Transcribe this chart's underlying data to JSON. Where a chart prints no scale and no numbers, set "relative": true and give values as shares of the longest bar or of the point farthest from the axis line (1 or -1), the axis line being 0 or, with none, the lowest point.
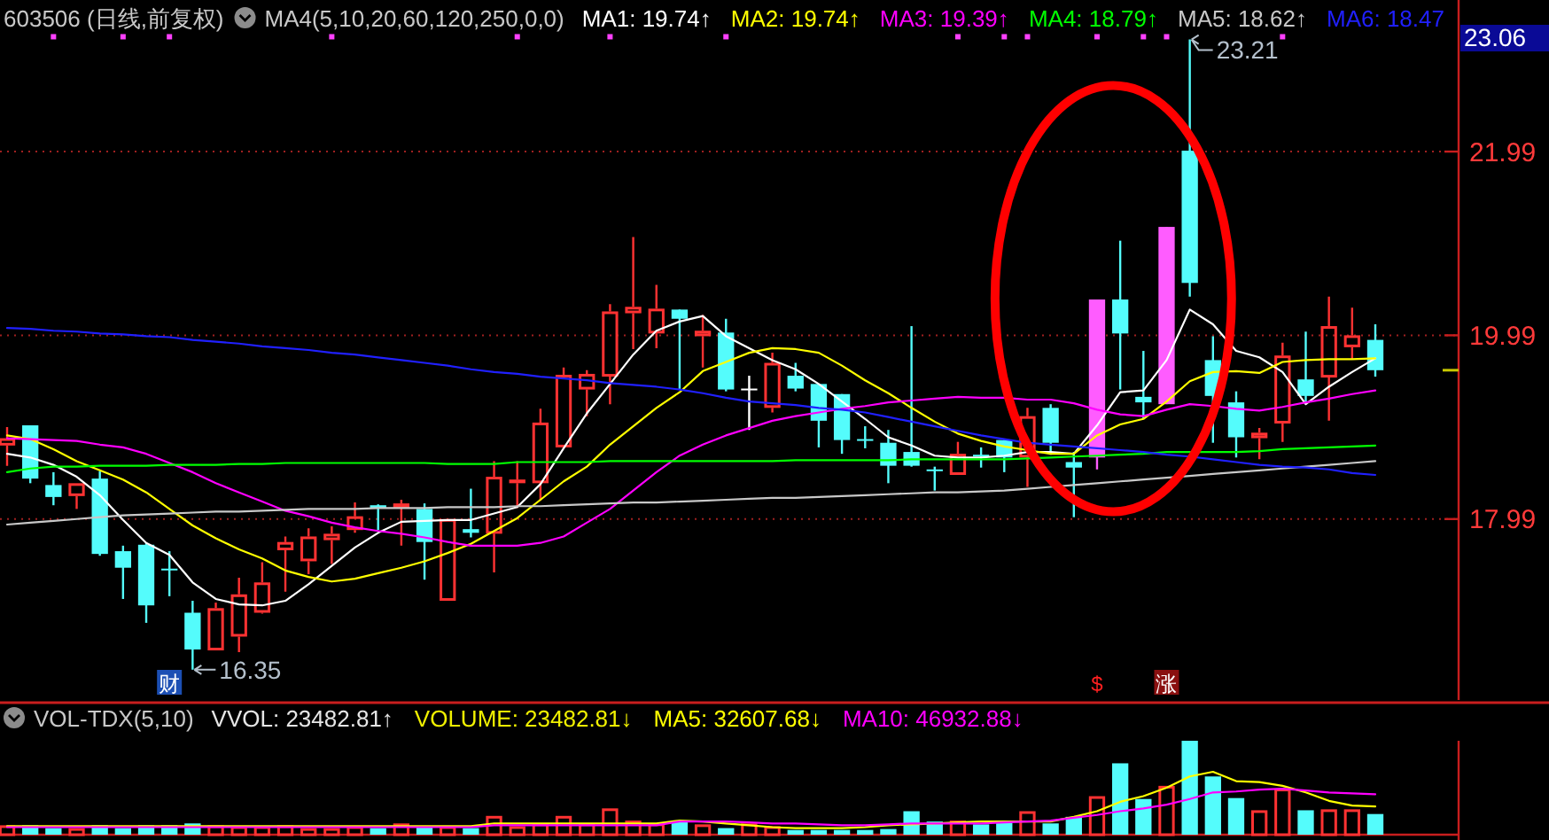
{
  "chart_data": [
    {
      "type": "candlestick",
      "title": "603506 (日线,前复权)",
      "subtitle": "MA4(5,10,20,60,120,250,0,0)",
      "categories": [
        null,
        null,
        null,
        null,
        null,
        null,
        null,
        null,
        null,
        null,
        null,
        null,
        null,
        null,
        null,
        null,
        null,
        null,
        null,
        null,
        null,
        null,
        null,
        null,
        null,
        null,
        null,
        null,
        null,
        null,
        null,
        null,
        null,
        null,
        null,
        null,
        null,
        null,
        null,
        null,
        null,
        null,
        null,
        null,
        null,
        null,
        null,
        null,
        null,
        null,
        null,
        null,
        null,
        null,
        null,
        null,
        null,
        null,
        null,
        null
      ],
      "ohlc": [
        [
          18.79,
          18.99,
          18.57,
          18.87
        ],
        [
          19.01,
          19.01,
          18.38,
          18.43
        ],
        [
          18.36,
          18.5,
          18.14,
          18.23
        ],
        [
          18.24,
          18.38,
          18.1,
          18.38
        ],
        [
          18.43,
          18.51,
          17.59,
          17.61
        ],
        [
          17.64,
          17.7,
          17.12,
          17.46
        ],
        [
          17.71,
          17.73,
          16.86,
          17.05
        ],
        [
          17.45,
          17.64,
          17.15,
          17.44
        ],
        [
          16.97,
          17.1,
          16.35,
          16.57
        ],
        [
          16.56,
          17.08,
          16.56,
          17.02
        ],
        [
          16.71,
          17.35,
          16.54,
          17.17
        ],
        [
          16.97,
          17.52,
          16.96,
          17.3
        ],
        [
          17.65,
          17.8,
          17.2,
          17.74
        ],
        [
          17.53,
          17.89,
          17.39,
          17.8
        ],
        [
          17.76,
          17.91,
          17.5,
          17.83
        ],
        [
          17.87,
          18.17,
          17.84,
          18.02
        ],
        [
          18.14,
          18.15,
          17.87,
          18.11
        ],
        [
          18.11,
          18.2,
          17.7,
          18.16
        ],
        [
          18.1,
          18.16,
          17.33,
          17.74
        ],
        [
          17.1,
          17.99,
          17.1,
          17.99
        ],
        [
          17.88,
          18.32,
          17.79,
          17.84
        ],
        [
          17.83,
          18.62,
          17.41,
          18.45
        ],
        [
          18.38,
          18.62,
          18.11,
          18.42
        ],
        [
          18.38,
          19.19,
          18.19,
          19.04
        ],
        [
          18.77,
          19.64,
          18.76,
          19.56
        ],
        [
          19.4,
          19.61,
          19.11,
          19.57
        ],
        [
          19.54,
          20.33,
          19.24,
          20.25
        ],
        [
          20.23,
          21.06,
          19.84,
          20.3
        ],
        [
          20.01,
          20.54,
          19.85,
          20.28
        ],
        [
          20.27,
          20.27,
          19.4,
          20.17
        ],
        [
          19.98,
          20.21,
          19.64,
          20.04
        ],
        [
          20.02,
          20.17,
          19.38,
          19.4
        ],
        [
          19.41,
          19.55,
          18.96,
          19.41
        ],
        [
          19.2,
          19.8,
          19.15,
          19.69
        ],
        [
          19.55,
          19.69,
          19.38,
          19.41
        ],
        [
          19.46,
          19.46,
          18.77,
          19.06
        ],
        [
          19.35,
          19.35,
          18.7,
          18.85
        ],
        [
          18.86,
          19.0,
          18.76,
          18.85
        ],
        [
          18.82,
          18.96,
          18.38,
          18.57
        ],
        [
          18.72,
          20.09,
          18.56,
          18.57
        ],
        [
          18.53,
          18.56,
          18.3,
          18.52
        ],
        [
          18.47,
          18.83,
          18.47,
          18.7
        ],
        [
          18.69,
          18.77,
          18.55,
          18.68
        ],
        [
          18.85,
          18.85,
          18.5,
          18.66
        ],
        [
          18.66,
          19.2,
          18.34,
          19.11
        ],
        [
          19.2,
          19.24,
          18.69,
          18.82
        ],
        [
          18.61,
          18.72,
          18.01,
          18.55
        ],
        [
          18.66,
          20.38,
          18.53,
          20.38
        ],
        [
          20.38,
          21.02,
          19.4,
          20.01
        ],
        [
          19.32,
          19.82,
          19.08,
          19.26
        ],
        [
          19.24,
          21.17,
          19.24,
          21.17
        ],
        [
          22.0,
          23.21,
          20.41,
          20.56
        ],
        [
          19.72,
          19.98,
          18.82,
          19.33
        ],
        [
          19.26,
          19.38,
          18.66,
          18.88
        ],
        [
          18.87,
          18.98,
          18.64,
          18.93
        ],
        [
          19.03,
          19.91,
          18.83,
          19.77
        ],
        [
          19.51,
          20.03,
          19.24,
          19.33
        ],
        [
          19.53,
          20.41,
          19.06,
          20.09
        ],
        [
          19.86,
          20.29,
          19.73,
          19.99
        ],
        [
          19.94,
          20.11,
          19.54,
          19.61
        ]
      ],
      "colors": [
        "#ff3232",
        "#54fcfc",
        "#54fcfc",
        "#ff3232",
        "#54fcfc",
        "#54fcfc",
        "#54fcfc",
        "#54fcfc",
        "#54fcfc",
        "#ff3232",
        "#ff3232",
        "#ff3232",
        "#ff3232",
        "#ff3232",
        "#ff3232",
        "#ff3232",
        "#54fcfc",
        "#ff3232",
        "#54fcfc",
        "#ff3232",
        "#54fcfc",
        "#ff3232",
        "#ff3232",
        "#ff3232",
        "#ff3232",
        "#ff3232",
        "#ff3232",
        "#ff3232",
        "#ff3232",
        "#54fcfc",
        "#ff3232",
        "#54fcfc",
        "#ffffff",
        "#ff3232",
        "#54fcfc",
        "#54fcfc",
        "#54fcfc",
        "#54fcfc",
        "#54fcfc",
        "#54fcfc",
        "#54fcfc",
        "#ff3232",
        "#54fcfc",
        "#54fcfc",
        "#ff3232",
        "#54fcfc",
        "#54fcfc",
        "#ff5cff",
        "#54fcfc",
        "#54fcfc",
        "#ff5cff",
        "#54fcfc",
        "#54fcfc",
        "#54fcfc",
        "#ff3232",
        "#ff3232",
        "#54fcfc",
        "#ff3232",
        "#ff3232",
        "#54fcfc"
      ],
      "series": [
        {
          "name": "MA1: 19.74↑",
          "type": "line",
          "color": "#ffffff",
          "values": [
            18.7,
            18.66,
            18.58,
            18.45,
            18.25,
            17.98,
            17.73,
            17.6,
            17.3,
            17.12,
            17.06,
            17.05,
            17.1,
            17.28,
            17.48,
            17.68,
            17.84,
            17.96,
            17.97,
            17.98,
            17.98,
            18.05,
            18.12,
            18.37,
            18.76,
            19.14,
            19.46,
            19.78,
            20.04,
            20.14,
            20.2,
            19.98,
            19.85,
            19.72,
            19.62,
            19.46,
            19.27,
            19.08,
            18.88,
            18.79,
            18.68,
            18.66,
            18.66,
            18.68,
            18.72,
            18.72,
            18.7,
            19.01,
            19.37,
            19.39,
            19.72,
            20.27,
            20.11,
            19.82,
            19.75,
            19.59,
            19.24,
            19.43,
            19.59,
            19.74
          ]
        },
        {
          "name": "MA2: 19.74↑",
          "type": "line",
          "color": "#ffff00",
          "values": [
            18.9,
            18.86,
            18.75,
            18.62,
            18.52,
            18.42,
            18.28,
            18.1,
            17.92,
            17.78,
            17.66,
            17.56,
            17.43,
            17.36,
            17.31,
            17.34,
            17.4,
            17.46,
            17.53,
            17.62,
            17.72,
            17.86,
            18.0,
            18.2,
            18.4,
            18.56,
            18.8,
            19.0,
            19.2,
            19.37,
            19.6,
            19.7,
            19.8,
            19.85,
            19.84,
            19.8,
            19.66,
            19.5,
            19.36,
            19.2,
            19.05,
            18.92,
            18.84,
            18.78,
            18.74,
            18.7,
            18.7,
            18.9,
            19.02,
            19.08,
            19.27,
            19.49,
            19.59,
            19.6,
            19.58,
            19.7,
            19.72,
            19.73,
            19.73,
            19.74
          ]
        },
        {
          "name": "MA3: 19.39↑",
          "type": "line",
          "color": "#ff00ff",
          "values": [
            18.87,
            18.86,
            18.85,
            18.84,
            18.8,
            18.77,
            18.7,
            18.6,
            18.5,
            18.38,
            18.28,
            18.18,
            18.08,
            18.02,
            17.95,
            17.9,
            17.86,
            17.83,
            17.79,
            17.74,
            17.7,
            17.7,
            17.7,
            17.73,
            17.8,
            17.95,
            18.1,
            18.3,
            18.5,
            18.68,
            18.8,
            18.9,
            18.98,
            19.06,
            19.11,
            19.15,
            19.19,
            19.22,
            19.26,
            19.28,
            19.3,
            19.32,
            19.31,
            19.31,
            19.29,
            19.29,
            19.25,
            19.18,
            19.13,
            19.11,
            19.18,
            19.24,
            19.22,
            19.19,
            19.17,
            19.21,
            19.26,
            19.3,
            19.35,
            19.39
          ]
        },
        {
          "name": "MA4: 18.79↑",
          "type": "line",
          "color": "#00ff00",
          "values": [
            18.5,
            18.54,
            18.56,
            18.56,
            18.57,
            18.57,
            18.57,
            18.58,
            18.58,
            18.58,
            18.59,
            18.59,
            18.6,
            18.6,
            18.6,
            18.6,
            18.6,
            18.6,
            18.6,
            18.59,
            18.59,
            18.59,
            18.61,
            18.61,
            18.61,
            18.61,
            18.62,
            18.62,
            18.62,
            18.62,
            18.62,
            18.62,
            18.62,
            18.62,
            18.63,
            18.63,
            18.63,
            18.63,
            18.63,
            18.64,
            18.64,
            18.64,
            18.64,
            18.64,
            18.65,
            18.66,
            18.67,
            18.68,
            18.69,
            18.7,
            18.72,
            18.72,
            18.72,
            18.72,
            18.73,
            18.75,
            18.76,
            18.77,
            18.78,
            18.79
          ]
        },
        {
          "name": "MA5: 18.62↑",
          "type": "line",
          "color": "#c8c8c8",
          "values": [
            17.93,
            17.95,
            17.97,
            17.99,
            18.01,
            18.03,
            18.04,
            18.05,
            18.06,
            18.07,
            18.07,
            18.08,
            18.09,
            18.1,
            18.1,
            18.1,
            18.11,
            18.11,
            18.11,
            18.12,
            18.12,
            18.12,
            18.13,
            18.13,
            18.14,
            18.15,
            18.16,
            18.17,
            18.17,
            18.18,
            18.19,
            18.2,
            18.21,
            18.22,
            18.22,
            18.23,
            18.24,
            18.25,
            18.26,
            18.27,
            18.28,
            18.28,
            18.29,
            18.3,
            18.32,
            18.34,
            18.36,
            18.38,
            18.4,
            18.42,
            18.44,
            18.46,
            18.48,
            18.5,
            18.52,
            18.54,
            18.56,
            18.58,
            18.6,
            18.62
          ]
        },
        {
          "name": "MA6: 18.47",
          "type": "line",
          "color": "#2020ff",
          "values": [
            20.07,
            20.06,
            20.04,
            20.03,
            20.01,
            20.0,
            19.98,
            19.97,
            19.94,
            19.92,
            19.9,
            19.87,
            19.85,
            19.83,
            19.8,
            19.78,
            19.75,
            19.72,
            19.69,
            19.66,
            19.62,
            19.59,
            19.57,
            19.54,
            19.52,
            19.5,
            19.47,
            19.45,
            19.43,
            19.4,
            19.36,
            19.31,
            19.27,
            19.25,
            19.23,
            19.2,
            19.18,
            19.15,
            19.1,
            19.05,
            19.0,
            18.95,
            18.9,
            18.86,
            18.82,
            18.8,
            18.78,
            18.76,
            18.74,
            18.72,
            18.69,
            18.67,
            18.64,
            18.61,
            18.58,
            18.56,
            18.55,
            18.53,
            18.49,
            18.47
          ]
        },
        {
          "type": "scatter",
          "color": "#ff40ff",
          "marker": "square",
          "values": [
            null,
            null,
            23.24,
            null,
            null,
            23.24,
            null,
            23.24,
            null,
            null,
            null,
            null,
            null,
            null,
            23.24,
            null,
            null,
            null,
            null,
            null,
            null,
            null,
            23.24,
            null,
            null,
            null,
            23.24,
            null,
            null,
            null,
            null,
            23.24,
            null,
            null,
            null,
            null,
            null,
            null,
            null,
            null,
            null,
            23.24,
            null,
            23.24,
            23.24,
            null,
            null,
            23.24,
            null,
            23.24,
            23.24,
            null,
            null,
            null,
            null,
            23.24,
            null,
            null,
            null,
            null
          ]
        }
      ],
      "ylim": [
        16.02,
        23.64
      ],
      "yticks": [
        17.99,
        19.99,
        21.99
      ],
      "grid": "y",
      "legend": "top right",
      "tick_labels": "y",
      "annotations": [
        "16.35",
        "23.21",
        "23.06",
        "财",
        "$",
        "涨"
      ]
    },
    {
      "type": "bar",
      "title": "VOL-TDX(5,10)",
      "relative": true,
      "categories": [
        null,
        null,
        null,
        null,
        null,
        null,
        null,
        null,
        null,
        null,
        null,
        null,
        null,
        null,
        null,
        null,
        null,
        null,
        null,
        null,
        null,
        null,
        null,
        null,
        null,
        null,
        null,
        null,
        null,
        null,
        null,
        null,
        null,
        null,
        null,
        null,
        null,
        null,
        null,
        null,
        null,
        null,
        null,
        null,
        null,
        null,
        null,
        null,
        null,
        null,
        null,
        null,
        null,
        null,
        null,
        null,
        null,
        null,
        null,
        null
      ],
      "series": [
        {
          "type": "bar",
          "colors": [
            "#ff3232",
            "#54fcfc",
            "#54fcfc",
            "#ff3232",
            "#54fcfc",
            "#54fcfc",
            "#54fcfc",
            "#54fcfc",
            "#54fcfc",
            "#ff3232",
            "#ff3232",
            "#ff3232",
            "#ff3232",
            "#ff3232",
            "#ff3232",
            "#ff3232",
            "#54fcfc",
            "#ff3232",
            "#54fcfc",
            "#ff3232",
            "#54fcfc",
            "#ff3232",
            "#ff3232",
            "#ff3232",
            "#ff3232",
            "#ff3232",
            "#ff3232",
            "#ff3232",
            "#ff3232",
            "#54fcfc",
            "#ff3232",
            "#54fcfc",
            "#ff3232",
            "#ff3232",
            "#54fcfc",
            "#54fcfc",
            "#54fcfc",
            "#54fcfc",
            "#54fcfc",
            "#54fcfc",
            "#54fcfc",
            "#ff3232",
            "#54fcfc",
            "#54fcfc",
            "#ff3232",
            "#54fcfc",
            "#54fcfc",
            "#ff3232",
            "#54fcfc",
            "#54fcfc",
            "#ff3232",
            "#54fcfc",
            "#54fcfc",
            "#54fcfc",
            "#ff3232",
            "#ff3232",
            "#54fcfc",
            "#ff3232",
            "#ff3232",
            "#54fcfc"
          ],
          "values": [
            0.1,
            0.1,
            0.07,
            0.07,
            0.1,
            0.07,
            0.1,
            0.1,
            0.12,
            0.1,
            0.09,
            0.09,
            0.1,
            0.07,
            0.07,
            0.09,
            0.07,
            0.12,
            0.09,
            0.09,
            0.07,
            0.2,
            0.09,
            0.12,
            0.2,
            0.12,
            0.28,
            0.15,
            0.12,
            0.15,
            0.11,
            0.07,
            0.12,
            0.09,
            0.05,
            0.05,
            0.05,
            0.05,
            0.06,
            0.25,
            0.14,
            0.15,
            0.11,
            0.14,
            0.25,
            0.12,
            0.19,
            0.41,
            0.76,
            0.38,
            0.52,
            1,
            0.62,
            0.39,
            0.26,
            0.49,
            0.26,
            0.27,
            0.27,
            0.22
          ]
        },
        {
          "name": "MA5: 32607.68↓",
          "type": "line",
          "color": "#ffff00",
          "values": [
            0.09,
            0.09,
            0.09,
            0.09,
            0.09,
            0.09,
            0.09,
            0.09,
            0.09,
            0.09,
            0.09,
            0.09,
            0.09,
            0.09,
            0.09,
            0.09,
            0.09,
            0.09,
            0.09,
            0.09,
            0.09,
            0.12,
            0.12,
            0.12,
            0.12,
            0.12,
            0.12,
            0.12,
            0.12,
            0.15,
            0.14,
            0.12,
            0.1,
            0.08,
            0.07,
            0.07,
            0.07,
            0.08,
            0.1,
            0.11,
            0.12,
            0.13,
            0.14,
            0.14,
            0.14,
            0.14,
            0.19,
            0.25,
            0.35,
            0.41,
            0.5,
            0.62,
            0.67,
            0.57,
            0.56,
            0.52,
            0.45,
            0.36,
            0.31,
            0.3
          ]
        },
        {
          "name": "MA10: 46932.88↓",
          "type": "line",
          "color": "#ff00ff",
          "values": [
            0.08,
            0.08,
            0.08,
            0.08,
            0.08,
            0.08,
            0.08,
            0.08,
            0.08,
            0.08,
            0.08,
            0.08,
            0.08,
            0.08,
            0.08,
            0.08,
            0.08,
            0.08,
            0.08,
            0.08,
            0.08,
            0.1,
            0.1,
            0.1,
            0.1,
            0.1,
            0.1,
            0.1,
            0.1,
            0.14,
            0.14,
            0.14,
            0.13,
            0.12,
            0.12,
            0.11,
            0.1,
            0.1,
            0.11,
            0.12,
            0.12,
            0.12,
            0.12,
            0.13,
            0.14,
            0.15,
            0.18,
            0.21,
            0.25,
            0.28,
            0.32,
            0.38,
            0.45,
            0.46,
            0.48,
            0.49,
            0.47,
            0.45,
            0.44,
            0.43
          ]
        }
      ],
      "legend": "top right",
      "tick_labels": false,
      "annotations": [
        "VVOL: 23482.81↑",
        "VOLUME: 23482.81↓"
      ]
    }
  ]
}
